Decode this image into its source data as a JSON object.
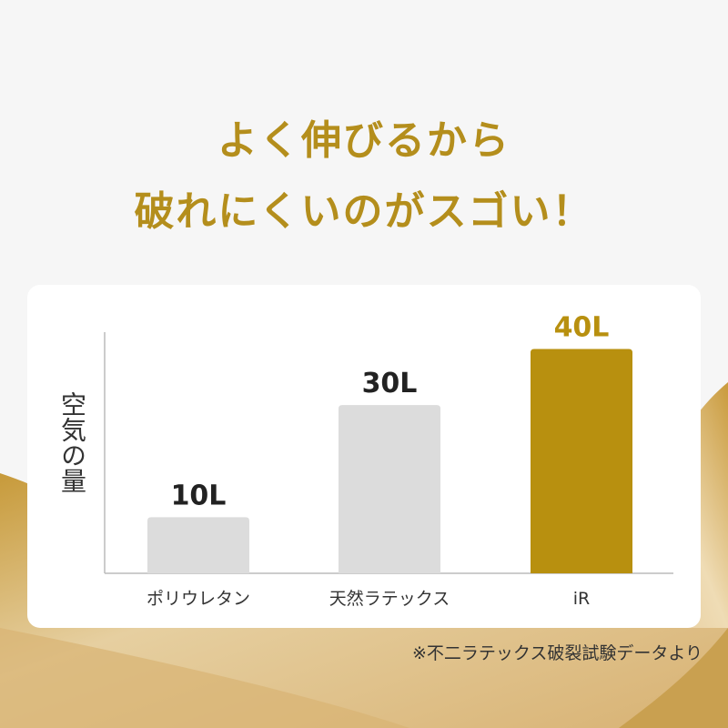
{
  "headline": {
    "line1": "よく伸びるから",
    "line2": "破れにくいのがスゴい！"
  },
  "colors": {
    "accent": "#b8900f",
    "bar_default": "#dcdcdc",
    "title": "#b48e1c"
  },
  "chart_data": {
    "type": "bar",
    "categories": [
      "ポリウレタン",
      "天然ラテックス",
      "iR"
    ],
    "values": [
      10,
      30,
      40
    ],
    "data_labels": [
      "10L",
      "30L",
      "40L"
    ],
    "highlight": "iR",
    "xlabel": "",
    "ylabel": "空気の量",
    "ylim": [
      0,
      43
    ],
    "grid": false
  },
  "footnote": "※不二ラテックス破裂試験データより"
}
